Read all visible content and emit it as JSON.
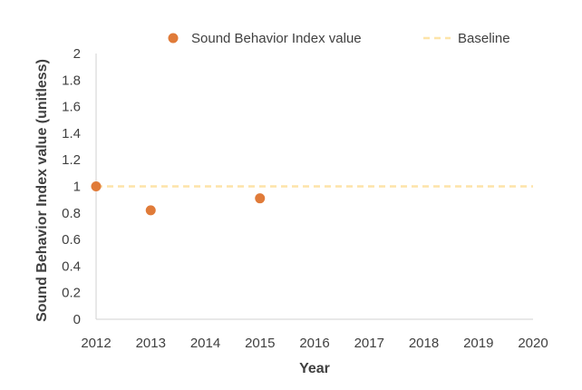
{
  "chart_data": {
    "type": "scatter",
    "title": "",
    "xlabel": "Year",
    "ylabel": "Sound Behavior Index  value (unitless)",
    "xlim": [
      2012,
      2020
    ],
    "ylim": [
      0,
      2
    ],
    "x_ticks": [
      "2012",
      "2013",
      "2014",
      "2015",
      "2016",
      "2017",
      "2018",
      "2019",
      "2020"
    ],
    "y_ticks": [
      "0",
      "0.2",
      "0.4",
      "0.6",
      "0.8",
      "1",
      "1.2",
      "1.4",
      "1.6",
      "1.8",
      "2"
    ],
    "grid": false,
    "legend_position": "top",
    "series": [
      {
        "name": "Sound Behavior Index value",
        "type": "scatter",
        "color": "#e07b39",
        "points": [
          {
            "x": 2012,
            "y": 1.0
          },
          {
            "x": 2013,
            "y": 0.82
          },
          {
            "x": 2015,
            "y": 0.91
          }
        ]
      },
      {
        "name": "Baseline",
        "type": "dashed-line",
        "color": "#fde4a8",
        "points": [
          {
            "x": 2012,
            "y": 1.0
          },
          {
            "x": 2020,
            "y": 1.0
          }
        ]
      }
    ]
  }
}
